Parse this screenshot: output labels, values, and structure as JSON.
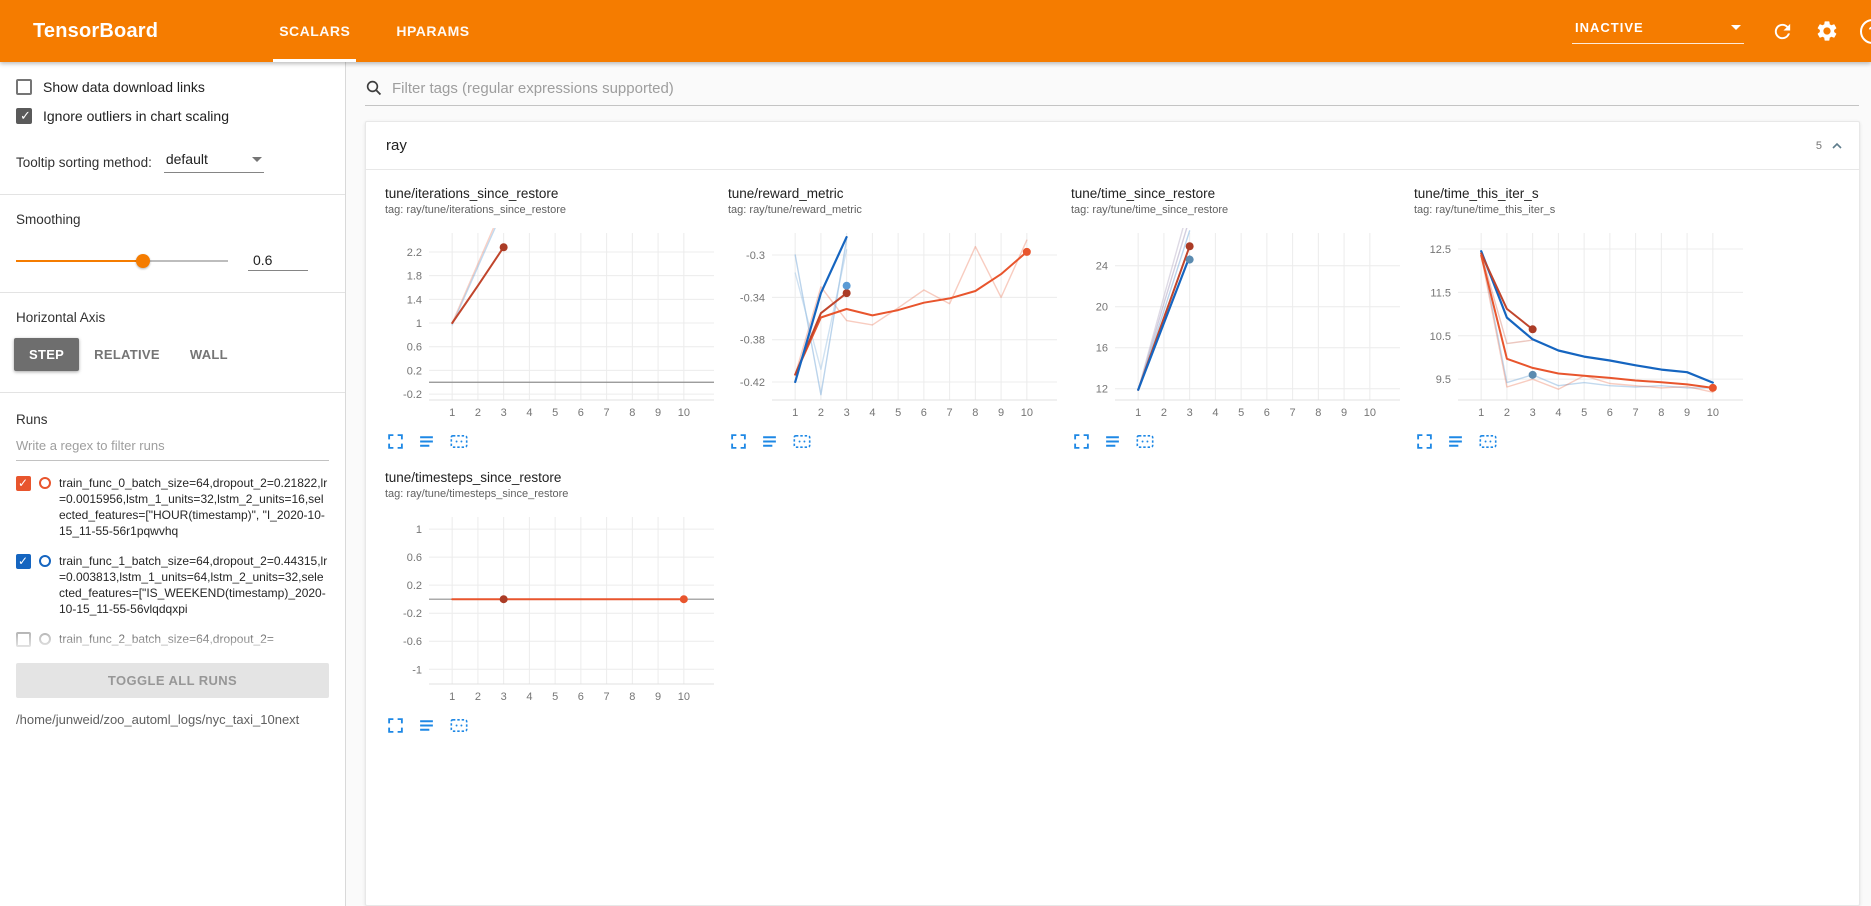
{
  "header": {
    "title": "TensorBoard",
    "tabs": [
      {
        "label": "SCALARS",
        "active": true
      },
      {
        "label": "HPARAMS",
        "active": false
      }
    ],
    "status_dropdown": {
      "value": "INACTIVE"
    },
    "accent_color": "#f57c00"
  },
  "sidebar": {
    "show_download": {
      "label": "Show data download links",
      "checked": false
    },
    "ignore_outliers": {
      "label": "Ignore outliers in chart scaling",
      "checked": true
    },
    "tooltip_sorting": {
      "label": "Tooltip sorting method:",
      "value": "default"
    },
    "smoothing": {
      "label": "Smoothing",
      "value": "0.6",
      "fraction": 0.6
    },
    "horizontal_axis": {
      "label": "Horizontal Axis",
      "options": [
        {
          "label": "STEP",
          "selected": true
        },
        {
          "label": "RELATIVE",
          "selected": false
        },
        {
          "label": "WALL",
          "selected": false
        }
      ]
    },
    "runs": {
      "label": "Runs",
      "filter_placeholder": "Write a regex to filter runs",
      "items": [
        {
          "checked": true,
          "color": "#e8552d",
          "text": "train_func_0_batch_size=64,dropout_2=0.21822,lr=0.0015956,lstm_1_units=32,lstm_2_units=16,selected_features=[\"HOUR(timestamp)\", \"I_2020-10-15_11-55-56r1pqwvhq"
        },
        {
          "checked": true,
          "color": "#1565c0",
          "text": "train_func_1_batch_size=64,dropout_2=0.44315,lr=0.003813,lstm_1_units=64,lstm_2_units=32,selected_features=[\"IS_WEEKEND(timestamp)_2020-10-15_11-55-56vlqdqxpi"
        },
        {
          "checked": false,
          "color": "#9e9e9e",
          "text": "train_func_2_batch_size=64,dropout_2="
        }
      ],
      "toggle_all_label": "TOGGLE ALL RUNS",
      "log_path": "/home/junweid/zoo_automl_logs/nyc_taxi_10next"
    }
  },
  "main": {
    "filter_placeholder": "Filter tags (regular expressions supported)",
    "category": {
      "name": "ray",
      "count": "5"
    }
  },
  "chart_data": [
    {
      "type": "line",
      "title": "tune/iterations_since_restore",
      "tag": "tag: ray/tune/iterations_since_restore",
      "xticks": [
        1,
        2,
        3,
        4,
        5,
        6,
        7,
        8,
        9,
        10
      ],
      "xlim": [
        0.1,
        10.9
      ],
      "yticks": [
        -0.2,
        0.2,
        0.6,
        1,
        1.4,
        1.8,
        2.2
      ],
      "ylim": [
        -0.3,
        2.47
      ],
      "zero_line": true,
      "series": [
        {
          "name": "train_func_0 raw",
          "color": "#e8552d",
          "opacity": 0.28,
          "width": 1.4,
          "x": [
            1,
            2,
            3
          ],
          "y": [
            1,
            2,
            3
          ]
        },
        {
          "name": "train_func_1 raw",
          "color": "#77aad9",
          "opacity": 0.45,
          "width": 1.4,
          "x": [
            1,
            2,
            3
          ],
          "y": [
            0.97,
            1.95,
            2.93
          ]
        },
        {
          "name": "train_func_0 smoothed",
          "color": "#c0452c",
          "opacity": 1,
          "width": 2,
          "x": [
            1,
            2,
            3
          ],
          "y": [
            1,
            1.63,
            2.28
          ]
        }
      ],
      "dots": [
        {
          "x": 3,
          "y": 2.28,
          "color": "#ab3c26"
        }
      ]
    },
    {
      "type": "line",
      "title": "tune/reward_metric",
      "tag": "tag: ray/tune/reward_metric",
      "xticks": [
        1,
        2,
        3,
        4,
        5,
        6,
        7,
        8,
        9,
        10
      ],
      "xlim": [
        0.1,
        10.9
      ],
      "yticks": [
        -0.42,
        -0.38,
        -0.34,
        -0.3
      ],
      "ylim": [
        -0.437,
        -0.282
      ],
      "zero_line": false,
      "series": [
        {
          "name": "raw orange",
          "color": "#e8552d",
          "opacity": 0.3,
          "width": 1.4,
          "x": [
            1,
            2,
            3,
            4,
            5,
            6,
            7,
            8,
            9,
            10
          ],
          "y": [
            -0.413,
            -0.33,
            -0.362,
            -0.366,
            -0.35,
            -0.333,
            -0.346,
            -0.292,
            -0.34,
            -0.286
          ]
        },
        {
          "name": "raw steel a",
          "color": "#77aad9",
          "opacity": 0.5,
          "width": 1.4,
          "x": [
            1,
            2,
            3
          ],
          "y": [
            -0.3,
            -0.432,
            -0.285
          ]
        },
        {
          "name": "raw steel b",
          "color": "#a9cbe8",
          "opacity": 0.55,
          "width": 1.4,
          "x": [
            1,
            2,
            3
          ],
          "y": [
            -0.317,
            -0.408,
            -0.295
          ]
        },
        {
          "name": "smoothed orange",
          "color": "#e8552d",
          "opacity": 1,
          "width": 2,
          "x": [
            1,
            2,
            3,
            4,
            5,
            6,
            7,
            8,
            9,
            10
          ],
          "y": [
            -0.413,
            -0.359,
            -0.351,
            -0.357,
            -0.352,
            -0.345,
            -0.341,
            -0.334,
            -0.318,
            -0.297
          ]
        },
        {
          "name": "smoothed red",
          "color": "#c0452c",
          "opacity": 1,
          "width": 2,
          "x": [
            1,
            2,
            3
          ],
          "y": [
            -0.413,
            -0.355,
            -0.336
          ]
        },
        {
          "name": "smoothed blue",
          "color": "#1565c0",
          "opacity": 1,
          "width": 2.2,
          "x": [
            1,
            2,
            3
          ],
          "y": [
            -0.42,
            -0.336,
            -0.283
          ]
        }
      ],
      "dots": [
        {
          "x": 3,
          "y": -0.336,
          "color": "#ab3c26"
        },
        {
          "x": 3,
          "y": -0.329,
          "color": "#5b9bd5"
        },
        {
          "x": 10,
          "y": -0.297,
          "color": "#e8552d"
        }
      ]
    },
    {
      "type": "line",
      "title": "tune/time_since_restore",
      "tag": "tag: ray/tune/time_since_restore",
      "xticks": [
        1,
        2,
        3,
        4,
        5,
        6,
        7,
        8,
        9,
        10
      ],
      "xlim": [
        0.1,
        10.9
      ],
      "yticks": [
        12,
        16,
        20,
        24
      ],
      "ylim": [
        10.9,
        26.9
      ],
      "zero_line": false,
      "series": [
        {
          "name": "raw a",
          "color": "#9d93b5",
          "opacity": 0.45,
          "width": 1.4,
          "x": [
            1,
            2,
            3
          ],
          "y": [
            11.9,
            20.3,
            28.6
          ]
        },
        {
          "name": "raw b",
          "color": "#bdb6cc",
          "opacity": 0.5,
          "width": 1.4,
          "x": [
            1,
            2,
            3
          ],
          "y": [
            11.9,
            21,
            30
          ]
        },
        {
          "name": "raw steel",
          "color": "#77aad9",
          "opacity": 0.5,
          "width": 1.4,
          "x": [
            1,
            2,
            3
          ],
          "y": [
            11.9,
            19.6,
            27.4
          ]
        },
        {
          "name": "smoothed red",
          "color": "#c0452c",
          "opacity": 1,
          "width": 2,
          "x": [
            1,
            2,
            3
          ],
          "y": [
            11.9,
            18.9,
            25.9
          ]
        },
        {
          "name": "smoothed blue",
          "color": "#1565c0",
          "opacity": 1,
          "width": 2.2,
          "x": [
            1,
            2,
            3
          ],
          "y": [
            11.9,
            18.4,
            24.9
          ]
        }
      ],
      "dots": [
        {
          "x": 3,
          "y": 25.9,
          "color": "#ab3c26"
        },
        {
          "x": 3,
          "y": 24.6,
          "color": "#5b8bb0"
        }
      ]
    },
    {
      "type": "line",
      "title": "tune/time_this_iter_s",
      "tag": "tag: ray/tune/time_this_iter_s",
      "xticks": [
        1,
        2,
        3,
        4,
        5,
        6,
        7,
        8,
        9,
        10
      ],
      "xlim": [
        0.1,
        10.9
      ],
      "yticks": [
        9.5,
        10.5,
        11.5,
        12.5
      ],
      "ylim": [
        9.02,
        12.8
      ],
      "zero_line": false,
      "series": [
        {
          "name": "raw steel",
          "color": "#77aad9",
          "opacity": 0.45,
          "width": 1.4,
          "x": [
            1,
            2,
            3,
            4,
            5,
            6,
            7,
            8,
            9,
            10
          ],
          "y": [
            12.45,
            9.42,
            9.6,
            9.35,
            9.42,
            9.35,
            9.32,
            9.35,
            9.3,
            9.3
          ]
        },
        {
          "name": "raw orange",
          "color": "#e8552d",
          "opacity": 0.3,
          "width": 1.4,
          "x": [
            1,
            2,
            3,
            4,
            5,
            6,
            7,
            8,
            9,
            10
          ],
          "y": [
            12.35,
            9.32,
            9.5,
            9.27,
            9.58,
            9.4,
            9.35,
            9.3,
            9.33,
            9.2
          ]
        },
        {
          "name": "raw red",
          "color": "#c0452c",
          "opacity": 0.3,
          "width": 1.4,
          "x": [
            1,
            2,
            3
          ],
          "y": [
            12.4,
            10.32,
            10.4
          ]
        },
        {
          "name": "smoothed blue",
          "color": "#1565c0",
          "opacity": 1,
          "width": 2.2,
          "x": [
            1,
            2,
            3,
            4,
            5,
            6,
            7,
            8,
            9,
            10
          ],
          "y": [
            12.45,
            10.92,
            10.42,
            10.16,
            10.02,
            9.93,
            9.82,
            9.72,
            9.66,
            9.42
          ]
        },
        {
          "name": "smoothed red",
          "color": "#c0452c",
          "opacity": 1,
          "width": 2,
          "x": [
            1,
            2,
            3
          ],
          "y": [
            12.4,
            11.12,
            10.65
          ]
        },
        {
          "name": "smoothed orange",
          "color": "#e8552d",
          "opacity": 1,
          "width": 2,
          "x": [
            1,
            2,
            3,
            4,
            5,
            6,
            7,
            8,
            9,
            10
          ],
          "y": [
            12.35,
            9.97,
            9.76,
            9.63,
            9.58,
            9.53,
            9.47,
            9.43,
            9.38,
            9.3
          ]
        }
      ],
      "dots": [
        {
          "x": 3,
          "y": 10.65,
          "color": "#ab3c26"
        },
        {
          "x": 3,
          "y": 9.6,
          "color": "#5b8bb0"
        },
        {
          "x": 10,
          "y": 9.3,
          "color": "#e8552d"
        }
      ]
    },
    {
      "type": "line",
      "title": "tune/timesteps_since_restore",
      "tag": "tag: ray/tune/timesteps_since_restore",
      "xticks": [
        1,
        2,
        3,
        4,
        5,
        6,
        7,
        8,
        9,
        10
      ],
      "xlim": [
        0.1,
        10.9
      ],
      "yticks": [
        -1,
        -0.6,
        -0.2,
        0.2,
        0.6,
        1
      ],
      "ylim": [
        -1.21,
        1.13
      ],
      "zero_line": true,
      "series": [
        {
          "name": "smoothed orange",
          "color": "#e8552d",
          "opacity": 1,
          "width": 2,
          "x": [
            1,
            2,
            3,
            4,
            5,
            6,
            7,
            8,
            9,
            10
          ],
          "y": [
            0,
            0,
            0,
            0,
            0,
            0,
            0,
            0,
            0,
            0
          ]
        }
      ],
      "dots": [
        {
          "x": 3,
          "y": 0,
          "color": "#ab3c26"
        },
        {
          "x": 10,
          "y": 0,
          "color": "#e8552d"
        }
      ]
    }
  ]
}
